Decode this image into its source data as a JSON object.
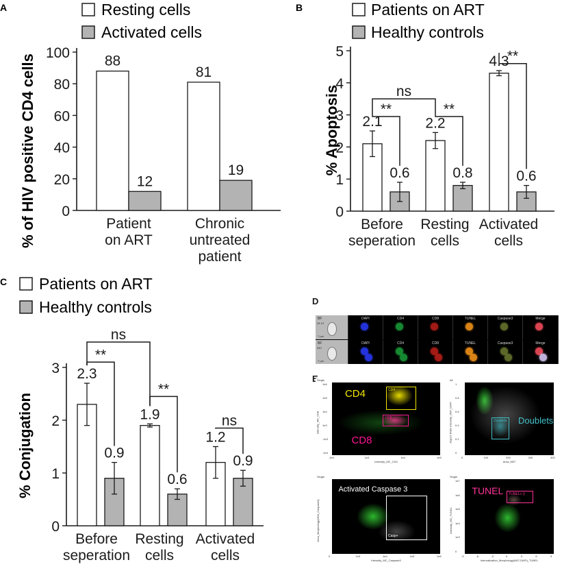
{
  "panels": {
    "A": {
      "letter": "A",
      "legend": [
        "Resting cells",
        "Activated cells"
      ],
      "ylabel": "% of HIV positive CD4 cells",
      "yticks": [
        "0",
        "20",
        "40",
        "60",
        "80",
        "100"
      ],
      "categories": [
        [
          "Patient",
          "on ART"
        ],
        [
          "Chronic",
          "untreated",
          "patient"
        ]
      ]
    },
    "B": {
      "letter": "B",
      "legend": [
        "Patients on ART",
        "Healthy controls"
      ],
      "ylabel": "% Apoptosis",
      "yticks": [
        "0",
        "1",
        "2",
        "3",
        "4",
        "5"
      ],
      "categories": [
        [
          "Before",
          "seperation"
        ],
        [
          "Resting",
          "cells"
        ],
        [
          "Activated",
          "cells"
        ]
      ],
      "significance": [
        "ns",
        "**",
        "**",
        "**"
      ]
    },
    "C": {
      "letter": "C",
      "legend": [
        "Patients on ART",
        "Healthy controls"
      ],
      "ylabel": "% Conjugation",
      "yticks": [
        "0",
        "1",
        "2",
        "3"
      ],
      "categories": [
        [
          "Before",
          "seperation"
        ],
        [
          "Resting",
          "cells"
        ],
        [
          "Activated",
          "cells"
        ]
      ],
      "significance": [
        "ns",
        "**",
        "**",
        "ns"
      ]
    },
    "D": {
      "letter": "D",
      "channels": [
        "BF",
        "DAPI",
        "CD4",
        "CD8",
        "TUNEL",
        "Caspase3",
        "Merge"
      ],
      "row_ids": [
        "24.14",
        "240"
      ],
      "scale": "7 µm"
    },
    "E": {
      "letter": "E",
      "plots": [
        {
          "title": "Single",
          "labels": [
            "CD4",
            "CD8"
          ],
          "gates": [
            "CD4",
            "CD8"
          ],
          "xaxis": "Intensity_MC_CD4",
          "yaxis": "Intensity_MC_CD8",
          "xticks": [
            "-1e4",
            "1e3",
            "1e4",
            "1e5"
          ],
          "yticks": [
            "1e6",
            "1e5",
            "1e4",
            "1e3",
            "-1e3",
            "-1e4"
          ]
        },
        {
          "title": "All",
          "labels": [
            "Doublets"
          ],
          "gates": [
            "Doublets"
          ],
          "xaxis": "Area_M07",
          "yaxis": "Aspect Ratio Intensity_M07_DAPI",
          "xticks": [
            "0",
            "100",
            "200",
            "300",
            "400"
          ],
          "yticks": [
            "1",
            "0.8",
            "0.6",
            "0.4",
            "0.2",
            "0"
          ]
        },
        {
          "title": "Single",
          "labels": [
            "Activated Caspase 3"
          ],
          "gates": [
            "Casp+"
          ],
          "xaxis": "Intensity_MC_Caspase3",
          "yaxis": "Area_Morphology(M04_Caspase3)",
          "xticks": [
            "0",
            "1e3",
            "1e4",
            "1e5",
            "1e6"
          ],
          "yticks": []
        },
        {
          "title": "Single",
          "labels": [
            "TUNEL"
          ],
          "gates": [
            "TUNEL+ (I"
          ],
          "xaxis": "Internalization_Morphology(M07,DAPI)_TUNEL",
          "yaxis": "Intensity_MC_TUNEL",
          "xticks": [
            "-9",
            "-6",
            "-3",
            "0",
            "3",
            "6",
            "9"
          ],
          "yticks": [
            "1e7",
            "1e6",
            "1e5",
            "1e4",
            "1e3",
            "0"
          ]
        }
      ]
    }
  },
  "colors": {
    "resting": "#ffffff",
    "activated": "#b3b3b3",
    "stroke": "#1a1a1a",
    "cd4": "#f2e600",
    "cd8": "#ff1493",
    "doublets": "#40c0c8",
    "events": "#30c030",
    "tunel": "#ff3399"
  },
  "chart_data": [
    {
      "type": "bar",
      "categories": [
        "Patient on ART",
        "Chronic untreated patient"
      ],
      "series": [
        {
          "name": "Resting cells",
          "values": [
            88,
            81
          ]
        },
        {
          "name": "Activated cells",
          "values": [
            12,
            19
          ]
        }
      ],
      "labels": [
        [
          "88",
          "81"
        ],
        [
          "12",
          "19"
        ]
      ],
      "ylabel": "% of HIV positive CD4 cells",
      "ylim": [
        0,
        100
      ],
      "legend": "top-left"
    },
    {
      "type": "bar",
      "categories": [
        "Before seperation",
        "Resting cells",
        "Activated cells"
      ],
      "series": [
        {
          "name": "Patients on ART",
          "values": [
            2.1,
            2.2,
            4.3
          ],
          "errors": [
            0.4,
            0.25,
            0.08
          ]
        },
        {
          "name": "Healthy controls",
          "values": [
            0.6,
            0.8,
            0.6
          ],
          "errors": [
            0.3,
            0.1,
            0.2
          ]
        }
      ],
      "labels": [
        [
          "2.1",
          "2.2",
          "4.3"
        ],
        [
          "0.6",
          "0.8",
          "0.6"
        ]
      ],
      "ylabel": "% Apoptosis",
      "ylim": [
        0,
        5
      ],
      "legend": "top-left"
    },
    {
      "type": "bar",
      "categories": [
        "Before seperation",
        "Resting cells",
        "Activated cells"
      ],
      "series": [
        {
          "name": "Patients on ART",
          "values": [
            2.3,
            1.9,
            1.2
          ],
          "errors": [
            0.4,
            0.03,
            0.3
          ]
        },
        {
          "name": "Healthy controls",
          "values": [
            0.9,
            0.6,
            0.9
          ],
          "errors": [
            0.3,
            0.1,
            0.15
          ]
        }
      ],
      "labels": [
        [
          "2.3",
          "1.9",
          "1.2"
        ],
        [
          "0.9",
          "0.6",
          "0.9"
        ]
      ],
      "ylabel": "% Conjugation",
      "ylim": [
        0,
        3
      ],
      "legend": "top-left"
    }
  ]
}
